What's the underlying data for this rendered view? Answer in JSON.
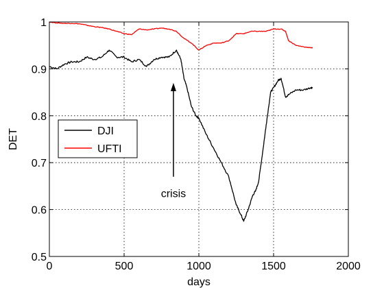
{
  "chart_data": {
    "type": "line",
    "title": "",
    "xlabel": "days",
    "ylabel": "DET",
    "xlim": [
      0,
      2000
    ],
    "ylim": [
      0.5,
      1
    ],
    "x_ticks": [
      "0",
      "500",
      "1000",
      "1500",
      "2000"
    ],
    "y_ticks": [
      "0.5",
      "0.6",
      "0.7",
      "0.8",
      "0.9",
      "1"
    ],
    "grid": true,
    "grid_style": "dotted",
    "legend_position": "middle-left",
    "series": [
      {
        "name": "DJI",
        "color": "#000000",
        "x": [
          0,
          50,
          100,
          150,
          200,
          250,
          300,
          350,
          400,
          450,
          500,
          550,
          600,
          650,
          700,
          750,
          800,
          850,
          880,
          900,
          920,
          950,
          980,
          1000,
          1050,
          1100,
          1150,
          1200,
          1250,
          1280,
          1300,
          1330,
          1360,
          1380,
          1400,
          1430,
          1450,
          1480,
          1500,
          1530,
          1550,
          1580,
          1600,
          1650,
          1700,
          1750,
          1760
        ],
        "y": [
          0.905,
          0.9,
          0.91,
          0.915,
          0.915,
          0.925,
          0.92,
          0.925,
          0.94,
          0.925,
          0.925,
          0.915,
          0.92,
          0.905,
          0.92,
          0.925,
          0.925,
          0.94,
          0.92,
          0.88,
          0.86,
          0.82,
          0.8,
          0.795,
          0.76,
          0.73,
          0.7,
          0.67,
          0.61,
          0.59,
          0.575,
          0.6,
          0.63,
          0.64,
          0.66,
          0.73,
          0.78,
          0.85,
          0.86,
          0.875,
          0.88,
          0.84,
          0.845,
          0.855,
          0.855,
          0.86,
          0.86
        ]
      },
      {
        "name": "UFTI",
        "color": "#ff0000",
        "x": [
          0,
          50,
          100,
          150,
          200,
          250,
          300,
          350,
          400,
          450,
          500,
          550,
          600,
          650,
          700,
          750,
          800,
          850,
          900,
          950,
          1000,
          1050,
          1100,
          1150,
          1200,
          1250,
          1300,
          1350,
          1400,
          1450,
          1500,
          1550,
          1580,
          1600,
          1650,
          1700,
          1750,
          1760
        ],
        "y": [
          1.0,
          0.998,
          0.997,
          0.997,
          0.996,
          0.993,
          0.99,
          0.988,
          0.985,
          0.98,
          0.975,
          0.973,
          0.985,
          0.983,
          0.985,
          0.987,
          0.985,
          0.98,
          0.965,
          0.955,
          0.94,
          0.95,
          0.955,
          0.955,
          0.96,
          0.975,
          0.975,
          0.98,
          0.98,
          0.98,
          0.985,
          0.985,
          0.98,
          0.96,
          0.95,
          0.947,
          0.945,
          0.945
        ]
      }
    ],
    "annotations": [
      {
        "text": "crisis",
        "x": 830,
        "y": 0.65,
        "arrow_to": [
          0.83,
          0.87
        ]
      }
    ]
  }
}
